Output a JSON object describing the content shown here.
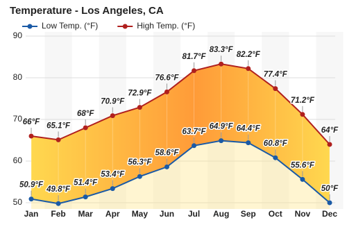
{
  "chart_data": {
    "type": "line",
    "title": "Temperature - Los Angeles, CA",
    "categories": [
      "Jan",
      "Feb",
      "Mar",
      "Apr",
      "May",
      "Jun",
      "Jul",
      "Aug",
      "Sep",
      "Oct",
      "Nov",
      "Dec"
    ],
    "series": [
      {
        "name": "Low Temp. (°F)",
        "color": "#1a5aa6",
        "values": [
          50.9,
          49.8,
          51.4,
          53.4,
          56.3,
          58.6,
          63.7,
          64.9,
          64.4,
          60.8,
          55.6,
          50
        ],
        "value_labels": [
          "50.9°F",
          "49.8°F",
          "51.4°F",
          "53.4°F",
          "56.3°F",
          "58.6°F",
          "63.7°F",
          "64.9°F",
          "64.4°F",
          "60.8°F",
          "55.6°F",
          "50°F"
        ]
      },
      {
        "name": "High Temp. (°F)",
        "color": "#b0201e",
        "values": [
          66,
          65.1,
          68,
          70.9,
          72.9,
          76.6,
          81.7,
          83.3,
          82.2,
          77.4,
          71.2,
          64
        ],
        "value_labels": [
          "66°F",
          "65.1°F",
          "68°F",
          "70.9°F",
          "72.9°F",
          "76.6°F",
          "81.7°F",
          "83.3°F",
          "82.2°F",
          "77.4°F",
          "71.2°F",
          "64°F"
        ]
      }
    ],
    "ylim": [
      48.5,
      91
    ],
    "yticks": [
      50,
      60,
      70,
      80,
      90
    ],
    "grid": true
  }
}
